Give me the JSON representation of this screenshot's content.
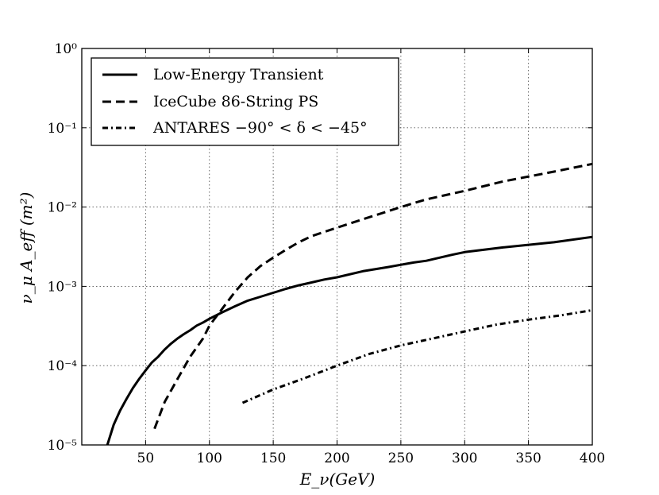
{
  "chart_data": {
    "type": "line",
    "title": "",
    "xlabel": "E_ν(GeV)",
    "ylabel": "ν_μ A_eff (m²)",
    "xlim": [
      0,
      400
    ],
    "ylim": [
      1e-05,
      1
    ],
    "yscale": "log",
    "grid": true,
    "legend_position": "top-left",
    "x_ticks": [
      50,
      100,
      150,
      200,
      250,
      300,
      350,
      400
    ],
    "x_tick_labels": [
      "50",
      "100",
      "150",
      "200",
      "250",
      "300",
      "350",
      "400"
    ],
    "y_ticks": [
      1e-05,
      0.0001,
      0.001,
      0.01,
      0.1,
      1
    ],
    "y_tick_labels": [
      "10⁻⁵",
      "10⁻⁴",
      "10⁻³",
      "10⁻²",
      "10⁻¹",
      "10⁰"
    ],
    "series": [
      {
        "name": "Low-Energy Transient",
        "style": "solid",
        "x": [
          20,
          25,
          30,
          35,
          40,
          45,
          50,
          55,
          60,
          65,
          70,
          75,
          80,
          85,
          90,
          95,
          100,
          110,
          120,
          130,
          140,
          150,
          160,
          170,
          180,
          190,
          200,
          220,
          240,
          260,
          270,
          290,
          300,
          330,
          370,
          400
        ],
        "y": [
          1e-05,
          1.8e-05,
          2.7e-05,
          3.8e-05,
          5.2e-05,
          6.8e-05,
          8.7e-05,
          0.00011,
          0.00013,
          0.00016,
          0.00019,
          0.00022,
          0.00025,
          0.00028,
          0.00032,
          0.00035,
          0.00039,
          0.00047,
          0.00056,
          0.00066,
          0.00074,
          0.00083,
          0.00093,
          0.00103,
          0.00112,
          0.00122,
          0.0013,
          0.00155,
          0.00175,
          0.002,
          0.0021,
          0.0025,
          0.0027,
          0.0031,
          0.0036,
          0.0042
        ]
      },
      {
        "name": "IceCube 86-String PS",
        "style": "dashed",
        "x": [
          57,
          65,
          75,
          85,
          95,
          100,
          110,
          120,
          130,
          140,
          150,
          160,
          170,
          180,
          200,
          220,
          250,
          270,
          300,
          330,
          370,
          400
        ],
        "y": [
          1.6e-05,
          3.5e-05,
          6.8e-05,
          0.00013,
          0.00022,
          0.00032,
          0.00052,
          0.00085,
          0.0013,
          0.0018,
          0.0023,
          0.0029,
          0.0036,
          0.0043,
          0.0055,
          0.007,
          0.01,
          0.0125,
          0.016,
          0.021,
          0.028,
          0.035
        ]
      },
      {
        "name": "ANTARES −90° < δ < −45°",
        "style": "dashdot",
        "x": [
          126,
          150,
          175,
          200,
          225,
          250,
          275,
          300,
          325,
          350,
          375,
          400
        ],
        "y": [
          3.4e-05,
          5e-05,
          7e-05,
          0.0001,
          0.00014,
          0.00018,
          0.00022,
          0.00027,
          0.00033,
          0.00038,
          0.00043,
          0.0005
        ]
      }
    ]
  }
}
